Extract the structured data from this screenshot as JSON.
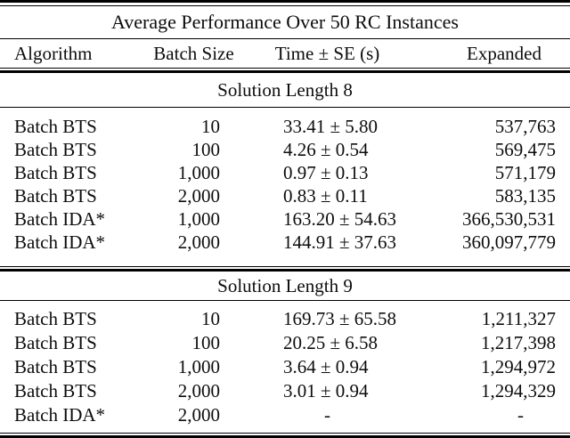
{
  "colors": {
    "background": "#ffffff",
    "text": "#0d0d0d",
    "rule": "#000000"
  },
  "table": {
    "title": "Average Performance Over 50 RC Instances",
    "columns": {
      "algorithm": "Algorithm",
      "batch_size": "Batch Size",
      "time_se": "Time ± SE (s)",
      "expanded": "Expanded"
    },
    "sections": [
      {
        "label": "Solution Length 8",
        "rows": [
          [
            "Batch BTS",
            "10",
            "33.41 ± 5.80",
            "537,763"
          ],
          [
            "Batch BTS",
            "100",
            "4.26 ± 0.54",
            "569,475"
          ],
          [
            "Batch BTS",
            "1,000",
            "0.97 ± 0.13",
            "571,179"
          ],
          [
            "Batch BTS",
            "2,000",
            "0.83 ± 0.11",
            "583,135"
          ],
          [
            "Batch IDA*",
            "1,000",
            "163.20 ± 54.63",
            "366,530,531"
          ],
          [
            "Batch IDA*",
            "2,000",
            "144.91 ± 37.63",
            "360,097,779"
          ]
        ]
      },
      {
        "label": "Solution Length 9",
        "rows": [
          [
            "Batch BTS",
            "10",
            "169.73 ± 65.58",
            "1,211,327"
          ],
          [
            "Batch BTS",
            "100",
            "20.25 ± 6.58",
            "1,217,398"
          ],
          [
            "Batch BTS",
            "1,000",
            "3.64 ± 0.94",
            "1,294,972"
          ],
          [
            "Batch BTS",
            "2,000",
            "3.01 ± 0.94",
            "1,294,329"
          ],
          [
            "Batch IDA*",
            "2,000",
            "-",
            "-"
          ]
        ]
      }
    ]
  }
}
